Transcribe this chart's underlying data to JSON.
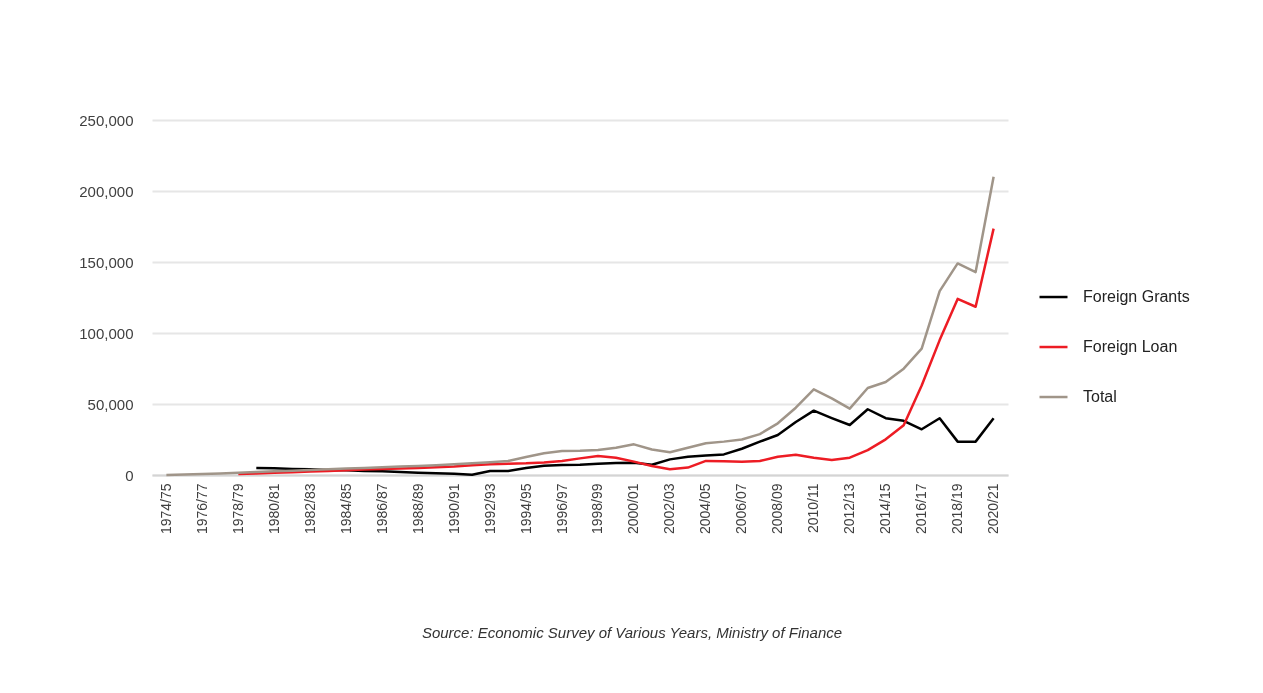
{
  "chart_data": {
    "type": "line",
    "categories": [
      "1974/75",
      null,
      "1976/77",
      null,
      "1978/79",
      null,
      "1980/81",
      null,
      "1982/83",
      null,
      "1984/85",
      null,
      "1986/87",
      null,
      "1988/89",
      null,
      "1990/91",
      null,
      "1992/93",
      null,
      "1994/95",
      null,
      "1996/97",
      null,
      "1998/99",
      null,
      "2000/01",
      null,
      "2002/03",
      null,
      "2004/05",
      null,
      "2006/07",
      null,
      "2008/09",
      null,
      "2010/11",
      null,
      "2012/13",
      null,
      "2014/15",
      null,
      "2016/17",
      null,
      "2018/19",
      null,
      "2020/21"
    ],
    "series": [
      {
        "name": "Foreign Grants",
        "color": "#000000",
        "values": [
          null,
          null,
          null,
          null,
          null,
          5000,
          4700,
          4300,
          4000,
          3600,
          3300,
          2900,
          2600,
          2100,
          1600,
          1200,
          900,
          200,
          2800,
          2800,
          5000,
          6500,
          7000,
          7300,
          8000,
          8500,
          8700,
          7200,
          11000,
          12800,
          13800,
          14500,
          18500,
          23500,
          28200,
          37300,
          45300,
          40100,
          35200,
          46300,
          40000,
          38200,
          32200,
          40000,
          23500,
          23500,
          40000
        ]
      },
      {
        "name": "Foreign Loan",
        "color": "#ed1c24",
        "values": [
          null,
          null,
          null,
          null,
          700,
          1100,
          1500,
          2000,
          2500,
          2900,
          3300,
          3800,
          4200,
          4600,
          5000,
          5500,
          6000,
          6800,
          7500,
          8000,
          8200,
          8800,
          9900,
          11700,
          13400,
          12200,
          9400,
          6300,
          4000,
          5200,
          9900,
          9600,
          9400,
          9900,
          12900,
          14300,
          12200,
          10600,
          12200,
          17500,
          25100,
          35000,
          63000,
          95000,
          124000,
          118500,
          173500
        ]
      },
      {
        "name": "Total",
        "color": "#a09589",
        "values": [
          0,
          300,
          700,
          1100,
          1600,
          2100,
          2600,
          3000,
          3500,
          4000,
          4500,
          5000,
          5400,
          5900,
          6300,
          6900,
          7500,
          8200,
          9000,
          9900,
          12700,
          15300,
          16900,
          17100,
          17600,
          19200,
          21600,
          18000,
          16000,
          19200,
          22300,
          23500,
          25000,
          28800,
          36400,
          47400,
          60300,
          54000,
          46700,
          61300,
          65500,
          74900,
          89000,
          129500,
          149000,
          142900,
          210000
        ]
      }
    ],
    "ylim": [
      0,
      250000
    ],
    "yticks": [
      {
        "value": 0,
        "label": "0"
      },
      {
        "value": 50000,
        "label": "50,000"
      },
      {
        "value": 100000,
        "label": "100,000"
      },
      {
        "value": 150000,
        "label": "150,000"
      },
      {
        "value": 200000,
        "label": "200,000"
      },
      {
        "value": 250000,
        "label": "250,000"
      }
    ],
    "grid": "y",
    "legend": "right",
    "line_style": "solid",
    "annotations": [
      "Source: Economic Survey of Various Years, Ministry of Finance"
    ]
  }
}
